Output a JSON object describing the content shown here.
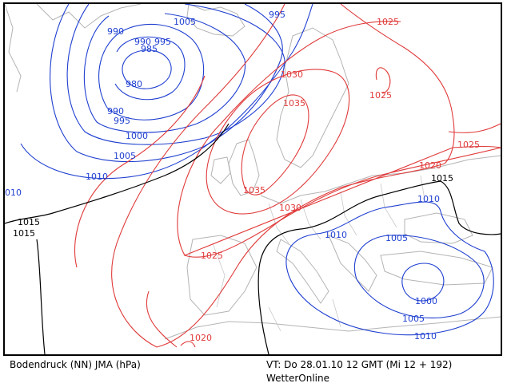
{
  "footer": {
    "product": "Bodendruck (NN) JMA (hPa)",
    "valid_time": "VT: Do 28.01.10 12 GMT (Mi 12 + 192)",
    "brand": "WetterOnline"
  },
  "colors": {
    "low_isobar": "#1f3fd0",
    "high_isobar": "#e03a3a",
    "reference_isobar": "#000000",
    "coastline": "#b4b4b4"
  },
  "isobar_labels": {
    "l1005_top": "1005",
    "l995_top": "995",
    "l990_a": "990",
    "l990_b": "990",
    "l995_b": "995",
    "l985": "985",
    "l980": "980",
    "l990_c": "990",
    "l995_c": "995",
    "l1000": "1000",
    "l1005_b": "1005",
    "l1010_a": "1010",
    "l1010_edge": "010",
    "l1015_a": "1015",
    "l1015_b": "1015",
    "h1025_top": "1025",
    "h1025_b": "1025",
    "h1030_a": "1030",
    "h1035_a": "1035",
    "h1035_b": "1035",
    "h1030_b": "1030",
    "h1025_c": "1025",
    "h1020_a": "1020",
    "h1025_d": "1025",
    "h1020_b": "1020",
    "m1015_c": "1015",
    "l1010_b": "1010",
    "l1010_c": "1010",
    "l1005_c": "1005",
    "l1000_b": "1000",
    "l1005_d": "1005",
    "l1010_d": "1010"
  }
}
